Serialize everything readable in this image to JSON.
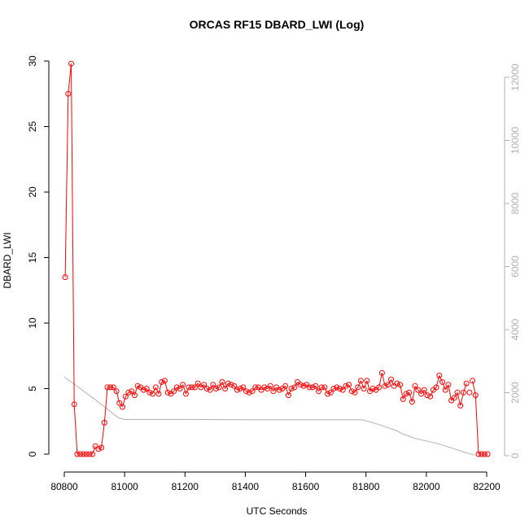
{
  "chart_data": {
    "type": "scatter",
    "title": "ORCAS RF15 DBARD_LWI (Log)",
    "xlabel": "UTC Seconds",
    "ylabel": "DBARD_LWI",
    "xlim": [
      80800,
      82200
    ],
    "ylim": [
      0,
      30
    ],
    "xticks": [
      80800,
      81000,
      81200,
      81400,
      81600,
      81800,
      82000,
      82200
    ],
    "yticks": [
      0,
      5,
      10,
      15,
      20,
      25,
      30
    ],
    "y2lim": [
      0,
      12000
    ],
    "y2ticks": [
      0,
      2000,
      4000,
      6000,
      8000,
      10000,
      12000
    ],
    "grid": false,
    "colors": {
      "points": "#ff0000",
      "secondary": "#b0b0b0",
      "axis": "#000000"
    },
    "series": [
      {
        "marker": "open-circle",
        "line": "solid-with-gaps",
        "x": [
          80803,
          80813,
          80823,
          80833,
          80843,
          80853,
          80863,
          80873,
          80883,
          80893,
          80903,
          80913,
          80923,
          80933,
          80943,
          80953,
          80963,
          80973,
          80983,
          80993,
          81003,
          81013,
          81023,
          81033,
          81043,
          81053,
          81063,
          81073,
          81083,
          81093,
          81103,
          81113,
          81123,
          81133,
          81143,
          81153,
          81163,
          81173,
          81183,
          81193,
          81203,
          81213,
          81223,
          81233,
          81243,
          81253,
          81263,
          81273,
          81283,
          81293,
          81303,
          81313,
          81323,
          81333,
          81343,
          81353,
          81363,
          81373,
          81383,
          81393,
          81403,
          81413,
          81423,
          81433,
          81443,
          81453,
          81463,
          81473,
          81483,
          81493,
          81503,
          81513,
          81523,
          81533,
          81543,
          81553,
          81563,
          81573,
          81583,
          81593,
          81603,
          81613,
          81623,
          81633,
          81643,
          81653,
          81663,
          81673,
          81683,
          81693,
          81703,
          81713,
          81723,
          81733,
          81743,
          81753,
          81763,
          81773,
          81783,
          81793,
          81803,
          81813,
          81823,
          81833,
          81843,
          81853,
          81863,
          81873,
          81883,
          81893,
          81903,
          81913,
          81923,
          81933,
          81943,
          81953,
          81963,
          81973,
          81983,
          81993,
          82003,
          82013,
          82023,
          82033,
          82043,
          82053,
          82063,
          82073,
          82083,
          82093,
          82103,
          82113,
          82123,
          82133,
          82143,
          82153,
          82163,
          82173,
          82183,
          82193,
          82203
        ],
        "y": [
          13.5,
          27.5,
          29.8,
          3.8,
          0,
          0,
          0,
          0,
          0,
          0,
          0.6,
          0.4,
          0.5,
          2.4,
          5.1,
          5.1,
          5.1,
          4.8,
          3.9,
          3.6,
          4.4,
          4.7,
          4.8,
          4.5,
          5.2,
          5.1,
          4.9,
          5.0,
          4.7,
          4.6,
          5.1,
          4.6,
          5.5,
          5.6,
          4.7,
          4.6,
          4.8,
          5.1,
          5.0,
          5.3,
          4.6,
          5.1,
          5.1,
          5.1,
          5.4,
          5.1,
          5.3,
          5.0,
          4.9,
          5.3,
          5.0,
          5.1,
          5.5,
          5.0,
          5.4,
          5.3,
          5.2,
          4.9,
          5.0,
          5.1,
          4.8,
          4.7,
          4.8,
          5.1,
          5.1,
          4.9,
          5.1,
          5.0,
          5.2,
          4.8,
          5.1,
          4.9,
          5.0,
          5.2,
          4.5,
          5.0,
          5.1,
          5.5,
          5.3,
          5.2,
          5.3,
          5.1,
          5.1,
          5.2,
          4.8,
          5.1,
          5.1,
          4.6,
          4.7,
          5.0,
          5.1,
          5.0,
          4.9,
          5.2,
          5.3,
          4.8,
          4.7,
          5.1,
          5.6,
          5.0,
          5.6,
          4.8,
          5.0,
          4.9,
          5.1,
          6.2,
          5.2,
          5.3,
          5.7,
          5.2,
          5.4,
          5.3,
          4.2,
          4.6,
          4.7,
          4.0,
          5.2,
          4.9,
          4.6,
          4.9,
          4.5,
          4.4,
          4.9,
          5.1,
          6.0,
          5.5,
          4.9,
          5.3,
          4.1,
          4.3,
          4.7,
          3.7,
          4.7,
          5.4,
          4.7,
          5.6,
          4.5,
          0,
          0,
          0,
          0
        ],
        "gaps_after_x": [
          80903,
          81893,
          82003,
          82133,
          82143
        ]
      }
    ],
    "secondary_series": {
      "axis": "right",
      "line": "solid",
      "x": [
        80800,
        80900,
        80980,
        81000,
        81200,
        81400,
        81600,
        81790,
        81800,
        81840,
        81900,
        81920,
        81960,
        82000,
        82040,
        82100,
        82130,
        82160
      ],
      "y": [
        2500,
        1800,
        1200,
        1150,
        1150,
        1140,
        1140,
        1140,
        1110,
        1000,
        800,
        700,
        560,
        470,
        380,
        200,
        100,
        20
      ]
    }
  }
}
